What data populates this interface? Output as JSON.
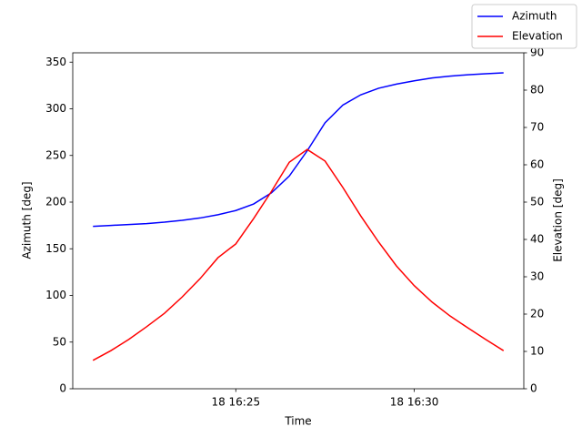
{
  "chart_data": {
    "type": "line",
    "x": [
      "18 16:21:00",
      "18 16:21:30",
      "18 16:22:00",
      "18 16:22:30",
      "18 16:23:00",
      "18 16:23:30",
      "18 16:24:00",
      "18 16:24:30",
      "18 16:25:00",
      "18 16:25:30",
      "18 16:26:00",
      "18 16:26:30",
      "18 16:27:00",
      "18 16:27:30",
      "18 16:28:00",
      "18 16:28:30",
      "18 16:29:00",
      "18 16:29:30",
      "18 16:30:00",
      "18 16:30:30",
      "18 16:31:00",
      "18 16:31:30",
      "18 16:32:00",
      "18 16:32:30"
    ],
    "series": [
      {
        "name": "Azimuth",
        "color": "#0000ff",
        "values": [
          174,
          175,
          176,
          177,
          178.5,
          180.5,
          183,
          186.5,
          191,
          198,
          210,
          228,
          255,
          285,
          304,
          315,
          322,
          326.5,
          330,
          333,
          335,
          336.5,
          337.5,
          338.5
        ]
      },
      {
        "name": "Elevation",
        "color": "#ff0000",
        "axis": "y2",
        "values": [
          7.6,
          10.2,
          13.2,
          16.6,
          20.2,
          24.6,
          29.5,
          35.1,
          38.8,
          45.6,
          52.9,
          60.7,
          64.1,
          61,
          53.9,
          46.3,
          39.3,
          32.9,
          27.6,
          23.2,
          19.5,
          16.3,
          13.2,
          10.2
        ]
      }
    ],
    "xlim": [
      "18 16:20:26",
      "18 16:33:04"
    ],
    "xticks": [
      {
        "value": "18 16:25:00",
        "label": "18 16:25"
      },
      {
        "value": "18 16:30:00",
        "label": "18 16:30"
      }
    ],
    "ylim": [
      0,
      360
    ],
    "yticks": [
      0,
      50,
      100,
      150,
      200,
      250,
      300,
      350
    ],
    "y2lim": [
      0,
      90
    ],
    "y2ticks": [
      0,
      10,
      20,
      30,
      40,
      50,
      60,
      70,
      80,
      90
    ],
    "xlabel": "Time",
    "ylabel": "Azimuth [deg]",
    "y2label": "Elevation [deg]",
    "legend": "upper right"
  }
}
